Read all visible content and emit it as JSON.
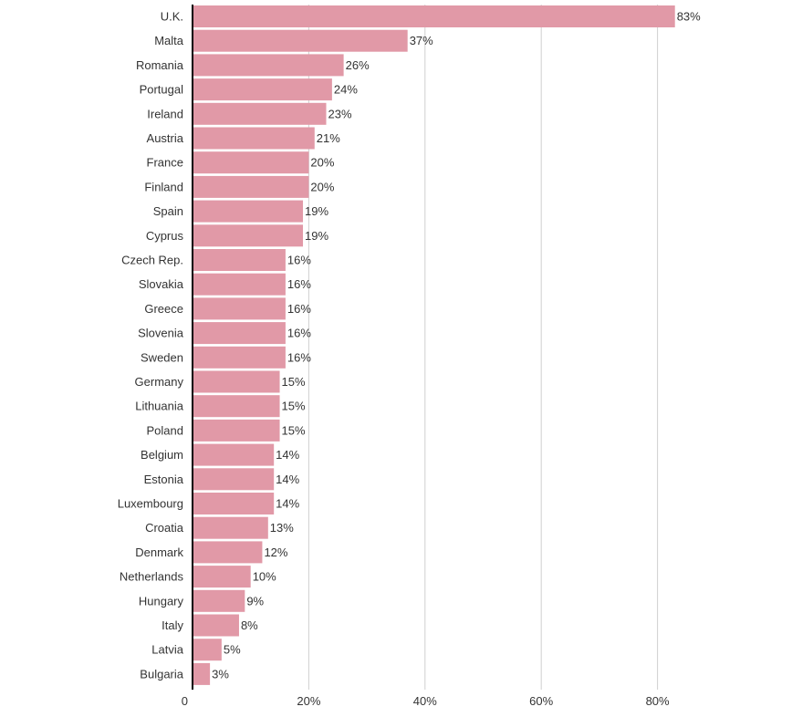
{
  "chart_data": {
    "type": "bar",
    "orientation": "horizontal",
    "categories": [
      "U.K.",
      "Malta",
      "Romania",
      "Portugal",
      "Ireland",
      "Austria",
      "France",
      "Finland",
      "Spain",
      "Cyprus",
      "Czech Rep.",
      "Slovakia",
      "Greece",
      "Slovenia",
      "Sweden",
      "Germany",
      "Lithuania",
      "Poland",
      "Belgium",
      "Estonia",
      "Luxembourg",
      "Croatia",
      "Denmark",
      "Netherlands",
      "Hungary",
      "Italy",
      "Latvia",
      "Bulgaria"
    ],
    "values": [
      83,
      37,
      26,
      24,
      23,
      21,
      20,
      20,
      19,
      19,
      16,
      16,
      16,
      16,
      16,
      15,
      15,
      15,
      14,
      14,
      14,
      13,
      12,
      10,
      9,
      8,
      5,
      3
    ],
    "value_labels": [
      "83%",
      "37%",
      "26%",
      "24%",
      "23%",
      "21%",
      "20%",
      "20%",
      "19%",
      "19%",
      "16%",
      "16%",
      "16%",
      "16%",
      "16%",
      "15%",
      "15%",
      "15%",
      "14%",
      "14%",
      "14%",
      "13%",
      "12%",
      "10%",
      "9%",
      "8%",
      "5%",
      "3%"
    ],
    "xticks": [
      0,
      20,
      40,
      60,
      80
    ],
    "xtick_labels": [
      "0",
      "20%",
      "40%",
      "60%",
      "80%"
    ],
    "xlim": [
      0,
      90
    ],
    "grid": true,
    "bar_color": "#e199a7",
    "grid_color": "#cfcfcf",
    "axis_color": "#000000",
    "title": "",
    "xlabel": "",
    "ylabel": ""
  }
}
